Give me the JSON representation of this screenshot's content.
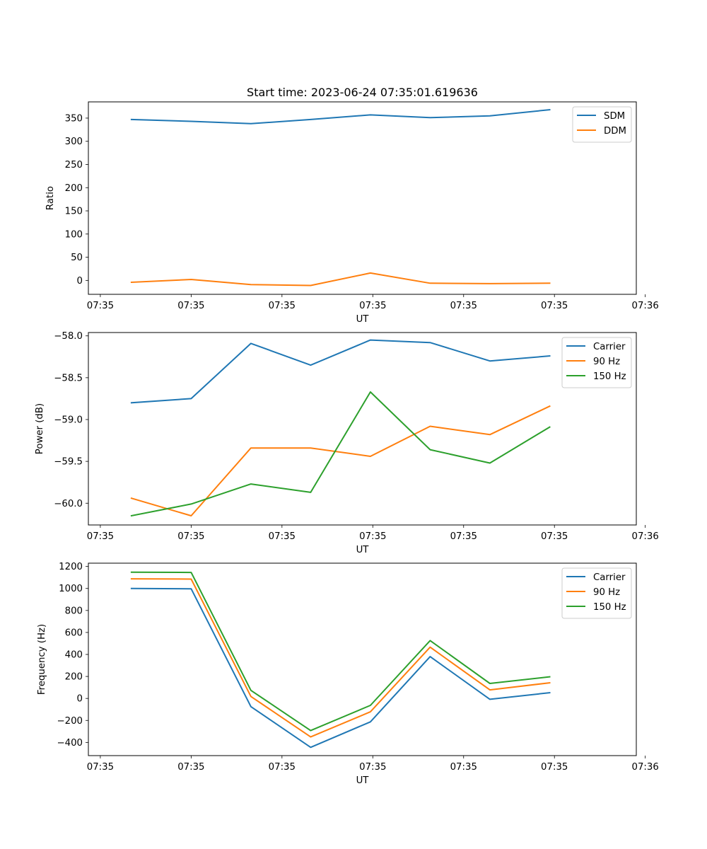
{
  "figure_title": "Start time: 2023-06-24 07:35:01.619636",
  "colors": {
    "series1": "#1f77b4",
    "series2": "#ff7f0e",
    "series3": "#2ca02c"
  },
  "chart_data": [
    {
      "type": "line",
      "title": "Start time: 2023-06-24 07:35:01.619636",
      "xlabel": "UT",
      "ylabel": "Ratio",
      "x": [
        1,
        2,
        3,
        4,
        5,
        6,
        7,
        8
      ],
      "xlim": [
        0.28,
        9.45
      ],
      "x_ticks": [
        0.48,
        2.0,
        3.52,
        5.04,
        6.56,
        8.08,
        9.6
      ],
      "x_tick_labels": [
        "07:35",
        "07:35",
        "07:35",
        "07:35",
        "07:35",
        "07:35",
        "07:36"
      ],
      "ylim": [
        -30,
        385
      ],
      "y_ticks": [
        0,
        50,
        100,
        150,
        200,
        250,
        300,
        350
      ],
      "y_tick_labels": [
        "0",
        "50",
        "100",
        "150",
        "200",
        "250",
        "300",
        "350"
      ],
      "legend_position": "upper right",
      "grid": false,
      "series": [
        {
          "name": "SDM",
          "color": "#1f77b4",
          "values": [
            347,
            343,
            338,
            347,
            357,
            351,
            355,
            368
          ]
        },
        {
          "name": "DDM",
          "color": "#ff7f0e",
          "values": [
            -4,
            2,
            -9,
            -11,
            16,
            -6,
            -7,
            -6
          ]
        }
      ]
    },
    {
      "type": "line",
      "title": "",
      "xlabel": "UT",
      "ylabel": "Power (dB)",
      "x": [
        1,
        2,
        3,
        4,
        5,
        6,
        7,
        8
      ],
      "xlim": [
        0.28,
        9.45
      ],
      "x_ticks": [
        0.48,
        2.0,
        3.52,
        5.04,
        6.56,
        8.08,
        9.6
      ],
      "x_tick_labels": [
        "07:35",
        "07:35",
        "07:35",
        "07:35",
        "07:35",
        "07:35",
        "07:36"
      ],
      "ylim": [
        -60.26,
        -57.96
      ],
      "y_ticks": [
        -60.0,
        -59.5,
        -59.0,
        -58.5,
        -58.0
      ],
      "y_tick_labels": [
        "−60.0",
        "−59.5",
        "−59.0",
        "−58.5",
        "−58.0"
      ],
      "legend_position": "upper right",
      "grid": false,
      "series": [
        {
          "name": "Carrier",
          "color": "#1f77b4",
          "values": [
            -58.8,
            -58.75,
            -58.09,
            -58.35,
            -58.05,
            -58.08,
            -58.3,
            -58.24
          ]
        },
        {
          "name": "90 Hz",
          "color": "#ff7f0e",
          "values": [
            -59.94,
            -60.15,
            -59.34,
            -59.34,
            -59.44,
            -59.08,
            -59.18,
            -58.84
          ]
        },
        {
          "name": "150 Hz",
          "color": "#2ca02c",
          "values": [
            -60.15,
            -60.01,
            -59.77,
            -59.87,
            -58.67,
            -59.36,
            -59.52,
            -59.09
          ]
        }
      ]
    },
    {
      "type": "line",
      "title": "",
      "xlabel": "UT",
      "ylabel": "Frequency (Hz)",
      "x": [
        1,
        2,
        3,
        4,
        5,
        6,
        7,
        8
      ],
      "xlim": [
        0.28,
        9.45
      ],
      "x_ticks": [
        0.48,
        2.0,
        3.52,
        5.04,
        6.56,
        8.08,
        9.6
      ],
      "x_tick_labels": [
        "07:35",
        "07:35",
        "07:35",
        "07:35",
        "07:35",
        "07:35",
        "07:36"
      ],
      "ylim": [
        -520,
        1230
      ],
      "y_ticks": [
        -400,
        -200,
        0,
        200,
        400,
        600,
        800,
        1000,
        1200
      ],
      "y_tick_labels": [
        "−400",
        "−200",
        "0",
        "200",
        "400",
        "600",
        "800",
        "1000",
        "1200"
      ],
      "legend_position": "upper right",
      "grid": false,
      "series": [
        {
          "name": "Carrier",
          "color": "#1f77b4",
          "values": [
            1000,
            997,
            -75,
            -445,
            -213,
            380,
            -8,
            52
          ]
        },
        {
          "name": "90 Hz",
          "color": "#ff7f0e",
          "values": [
            1088,
            1085,
            18,
            -350,
            -122,
            466,
            78,
            142
          ]
        },
        {
          "name": "150 Hz",
          "color": "#2ca02c",
          "values": [
            1148,
            1146,
            73,
            -292,
            -63,
            526,
            136,
            197
          ]
        }
      ]
    }
  ]
}
